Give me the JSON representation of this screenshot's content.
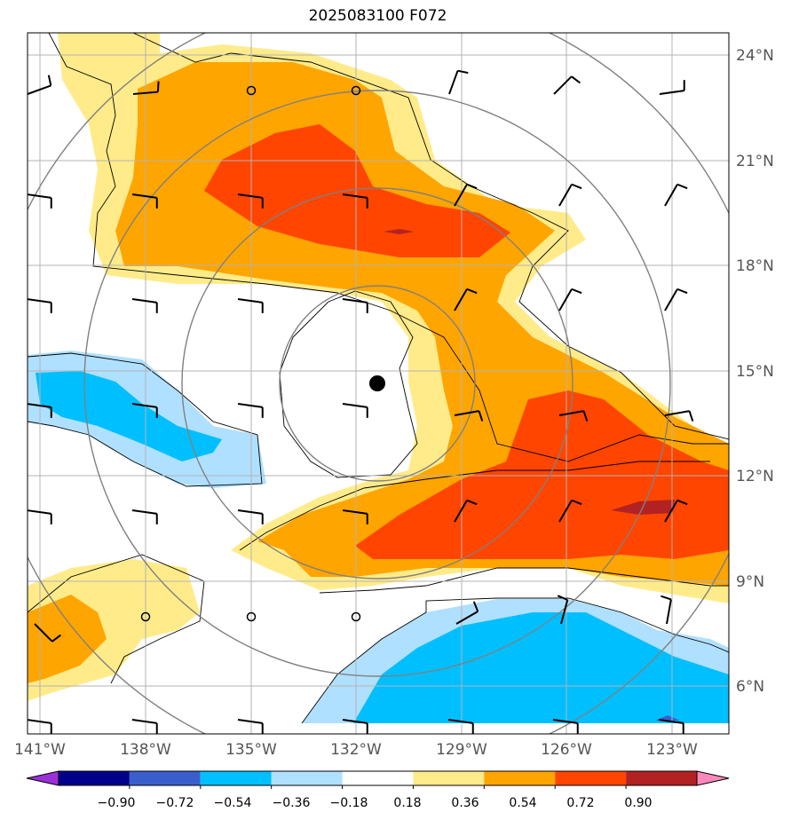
{
  "title": "2025083100 F072",
  "map": {
    "lon_range": [
      -141,
      -121
    ],
    "lat_range": [
      4.9,
      24.9
    ],
    "lon_ticks": [
      "141°W",
      "138°W",
      "135°W",
      "132°W",
      "129°W",
      "126°W",
      "123°W"
    ],
    "lat_ticks": [
      "6°N",
      "9°N",
      "12°N",
      "15°N",
      "18°N",
      "21°N",
      "24°N"
    ],
    "grid": true,
    "storm_center": {
      "lon": -131.5,
      "lat": 14.6
    }
  },
  "colorbar": {
    "labels": [
      "−0.90",
      "−0.72",
      "−0.54",
      "−0.36",
      "−0.18",
      "0.18",
      "0.36",
      "0.54",
      "0.72",
      "0.90"
    ],
    "colors": [
      "#9b30d9",
      "#00008b",
      "#3a5fcd",
      "#00bfff",
      "#b0e0ff",
      "#ffffff",
      "#ffeb8a",
      "#ffa500",
      "#ff4500",
      "#b22222",
      "#ff88bb"
    ]
  }
}
